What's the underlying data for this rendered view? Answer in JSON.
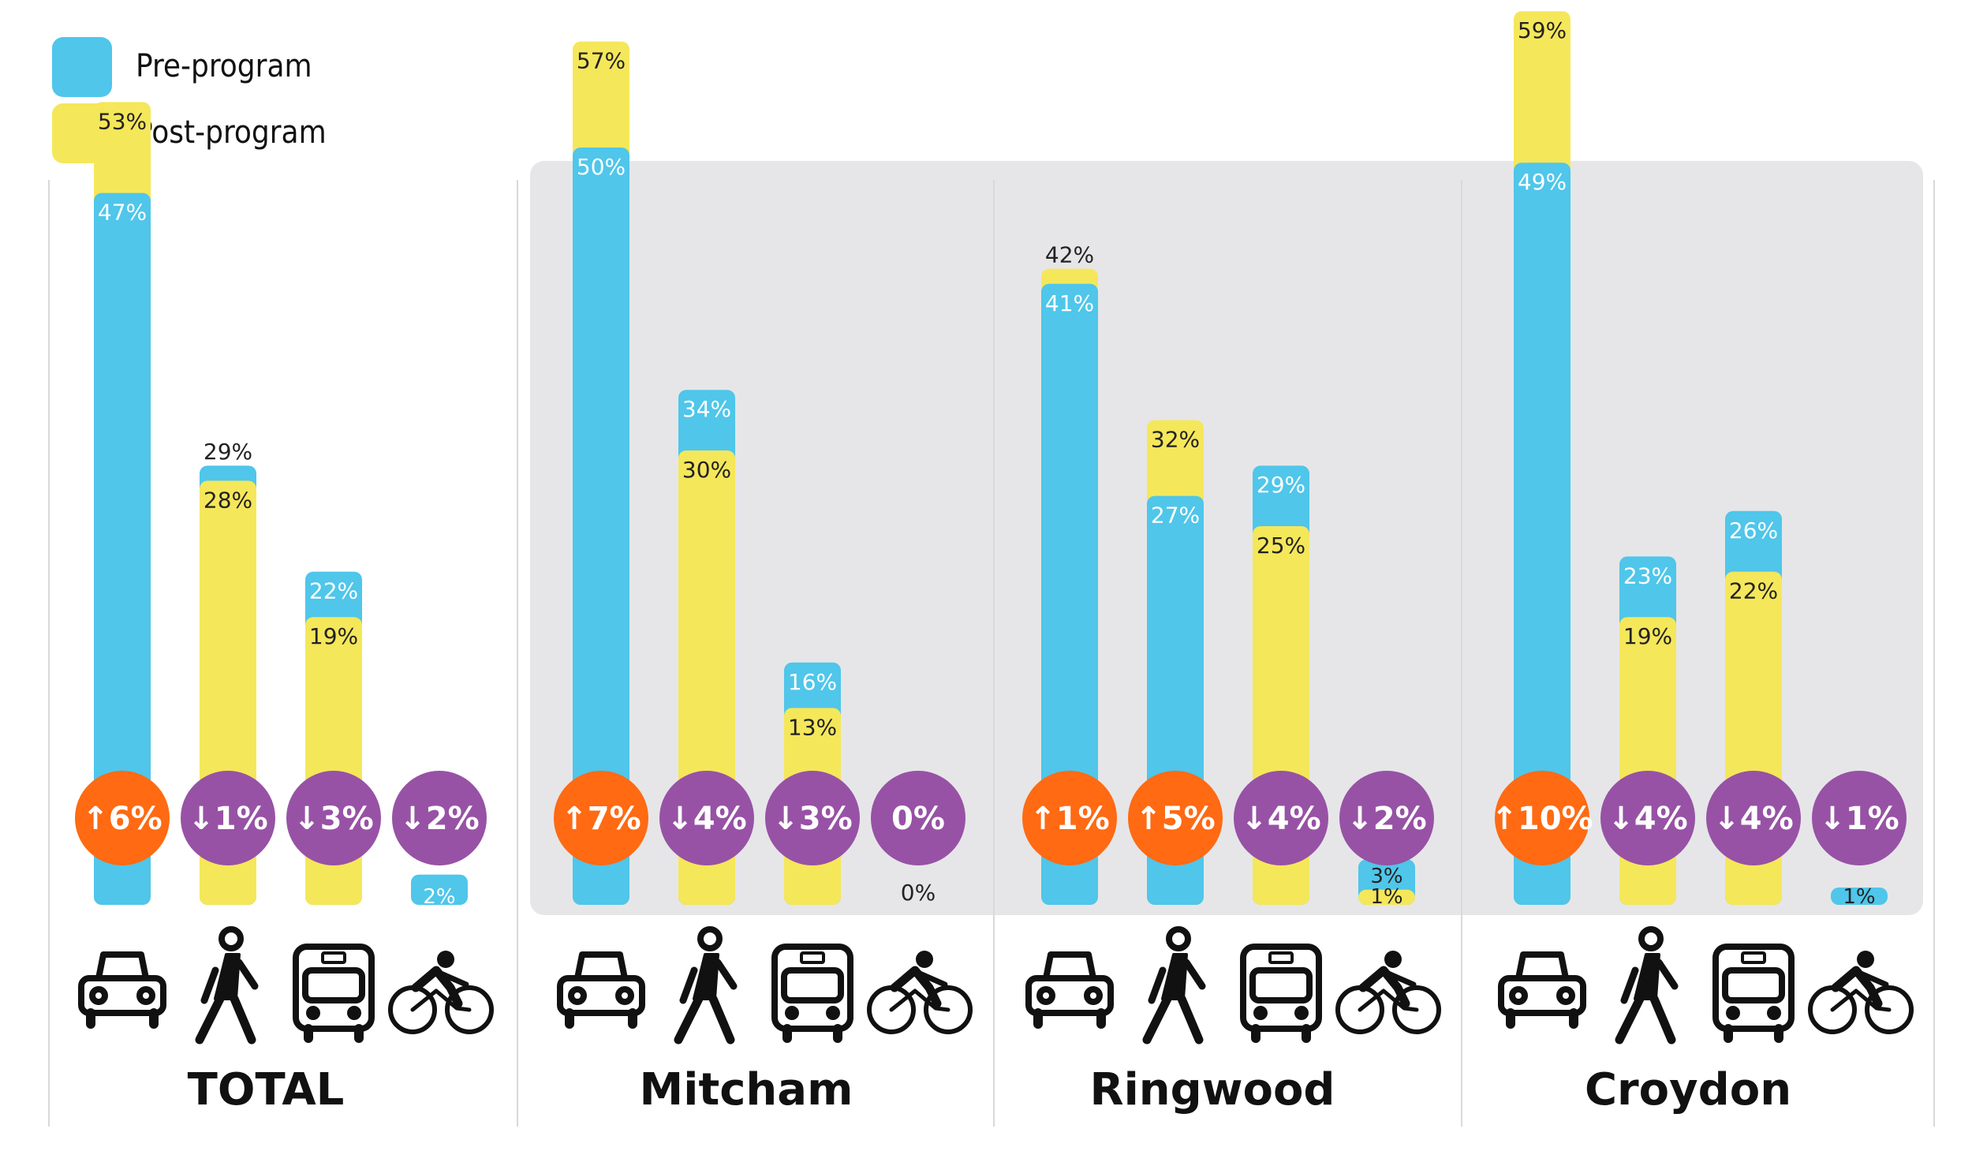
{
  "legend": [
    {
      "label": "Pre-program",
      "color": "#4fc6ea"
    },
    {
      "label": "Post-program",
      "color": "#f5e75a"
    }
  ],
  "colors": {
    "pre": "#4fc6ea",
    "post": "#f5e75a",
    "increase_badge": "#ff6a13",
    "decrease_badge": "#9752a5",
    "highlight_panel": "#e6e6e8",
    "divider": "#d9d9d9",
    "icon": "#111111"
  },
  "chart_data": {
    "type": "bar",
    "categories": [
      "car",
      "walk",
      "bus",
      "bicycle"
    ],
    "category_icons": [
      "car-icon",
      "walker-icon",
      "bus-icon",
      "cyclist-icon"
    ],
    "series_names": [
      "Pre-program",
      "Post-program"
    ],
    "ylim": [
      0,
      60
    ],
    "grid": false,
    "legend_position": "top-left",
    "groups": [
      {
        "name": "TOTAL",
        "highlighted": false,
        "pre": [
          47,
          29,
          22,
          2
        ],
        "post": [
          53,
          28,
          19,
          null
        ],
        "pre_labels": [
          "47%",
          "29%",
          "22%",
          "2%"
        ],
        "post_labels": [
          "53%",
          "28%",
          "19%",
          ""
        ],
        "changes": [
          "↑6%",
          "↓1%",
          "↓3%",
          "↓2%"
        ],
        "change_dirs": [
          "up",
          "down",
          "down",
          "down"
        ]
      },
      {
        "name": "Mitcham",
        "highlighted": true,
        "pre": [
          50,
          34,
          16,
          0
        ],
        "post": [
          57,
          30,
          13,
          0
        ],
        "pre_labels": [
          "50%",
          "34%",
          "16%",
          ""
        ],
        "post_labels": [
          "57%",
          "30%",
          "13%",
          "0%"
        ],
        "changes": [
          "↑7%",
          "↓4%",
          "↓3%",
          "0%"
        ],
        "change_dirs": [
          "up",
          "down",
          "down",
          "none"
        ]
      },
      {
        "name": "Ringwood",
        "highlighted": true,
        "pre": [
          41,
          27,
          29,
          3
        ],
        "post": [
          42,
          32,
          25,
          1
        ],
        "pre_labels": [
          "41%",
          "27%",
          "29%",
          "3%"
        ],
        "post_labels": [
          "42%",
          "32%",
          "25%",
          "1%"
        ],
        "changes": [
          "↑1%",
          "↑5%",
          "↓4%",
          "↓2%"
        ],
        "change_dirs": [
          "up",
          "up",
          "down",
          "down"
        ]
      },
      {
        "name": "Croydon",
        "highlighted": true,
        "pre": [
          49,
          23,
          26,
          1
        ],
        "post": [
          59,
          19,
          22,
          null
        ],
        "pre_labels": [
          "49%",
          "23%",
          "26%",
          "1%"
        ],
        "post_labels": [
          "59%",
          "19%",
          "22%",
          ""
        ],
        "changes": [
          "↑10%",
          "↓4%",
          "↓4%",
          "↓1%"
        ],
        "change_dirs": [
          "up",
          "down",
          "down",
          "down"
        ]
      }
    ]
  }
}
